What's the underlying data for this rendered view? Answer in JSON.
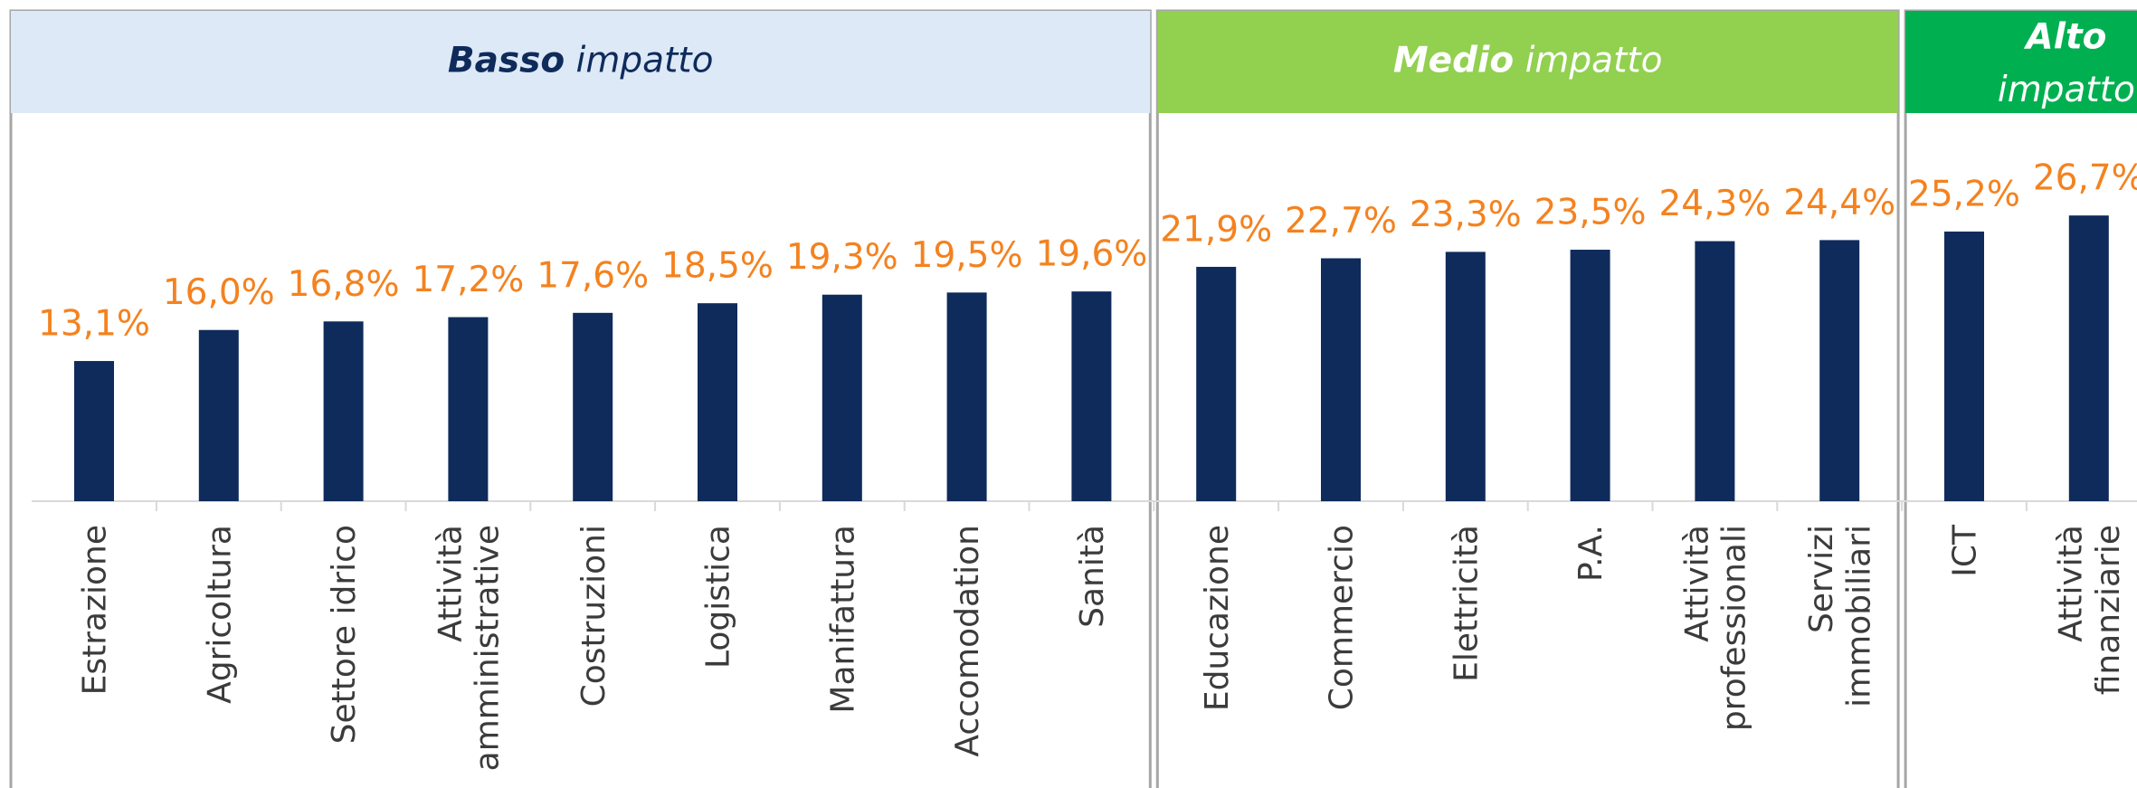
{
  "chart_data": {
    "type": "bar",
    "color": "#0f2b5b",
    "label_color": "#f4821f",
    "ylim": [
      0,
      35
    ],
    "groups": [
      {
        "bold": "Basso",
        "rest": "impatto",
        "color": "#dde9f6",
        "text_color": "#0f2b5b",
        "categories": [
          "Estrazione",
          "Agricoltura",
          "Settore idrico",
          "Attività\namministrative",
          "Costruzioni",
          "Logistica",
          "Manifattura",
          "Accomodation",
          "Sanità"
        ],
        "values": [
          13.1,
          16.0,
          16.8,
          17.2,
          17.6,
          18.5,
          19.3,
          19.5,
          19.6
        ],
        "value_labels": [
          "13,1%",
          "16,0%",
          "16,8%",
          "17,2%",
          "17,6%",
          "18,5%",
          "19,3%",
          "19,5%",
          "19,6%"
        ]
      },
      {
        "bold": "Medio",
        "rest": "impatto",
        "color": "#92d050",
        "text_color": "#ffffff",
        "categories": [
          "Educazione",
          "Commercio",
          "Elettricità",
          "P.A.",
          "Attività\nprofessionali",
          "Servizi\nimmobiliari"
        ],
        "values": [
          21.9,
          22.7,
          23.3,
          23.5,
          24.3,
          24.4
        ],
        "value_labels": [
          "21,9%",
          "22,7%",
          "23,3%",
          "23,5%",
          "24,3%",
          "24,4%"
        ]
      },
      {
        "bold": "Alto",
        "rest": "impatto",
        "color": "#00b050",
        "text_color": "#ffffff",
        "categories": [
          "ICT",
          "Attività\nfinanziarie"
        ],
        "values": [
          25.2,
          26.7
        ],
        "value_labels": [
          "25,2%",
          "26,7%"
        ]
      }
    ]
  }
}
